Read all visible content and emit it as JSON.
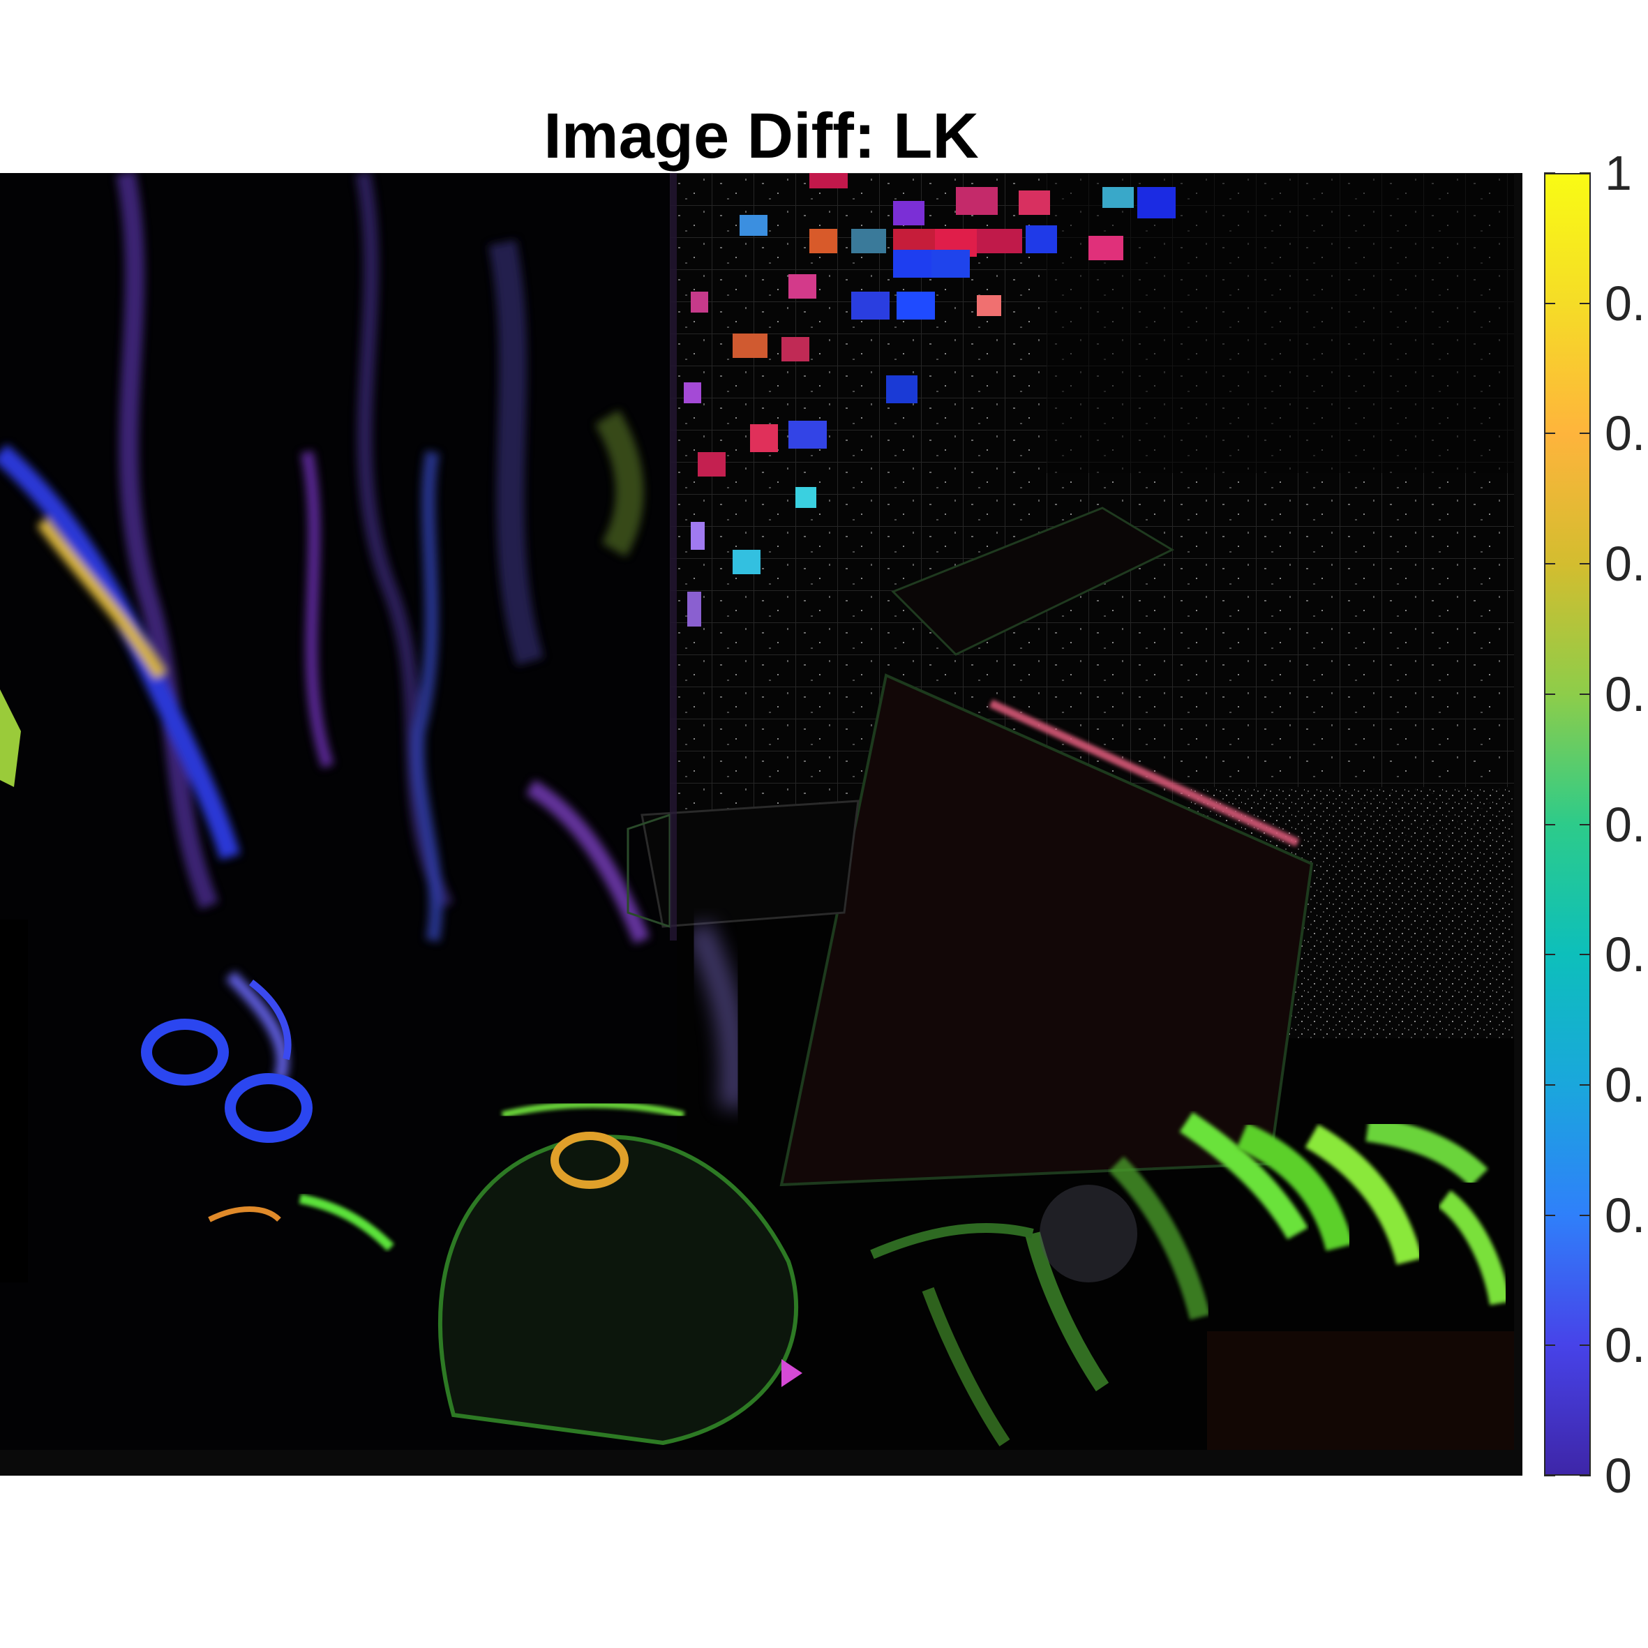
{
  "figure": {
    "title": "Image Diff: LK",
    "image_description_icon": "optical-flow-difference-image",
    "colormap": "parula",
    "colorbar": {
      "min": 0,
      "max": 1,
      "ticks": [
        {
          "value": 1,
          "label": "1"
        },
        {
          "value": 0.9,
          "label": "0."
        },
        {
          "value": 0.8,
          "label": "0."
        },
        {
          "value": 0.7,
          "label": "0."
        },
        {
          "value": 0.6,
          "label": "0."
        },
        {
          "value": 0.5,
          "label": "0."
        },
        {
          "value": 0.4,
          "label": "0."
        },
        {
          "value": 0.3,
          "label": "0."
        },
        {
          "value": 0.2,
          "label": "0."
        },
        {
          "value": 0.1,
          "label": "0."
        },
        {
          "value": 0,
          "label": "0"
        }
      ],
      "colors": [
        "#3e26a8",
        "#4743e9",
        "#2f80fa",
        "#1aa7dc",
        "#0dbfbb",
        "#2dcb8a",
        "#8dcd4a",
        "#d3bd2f",
        "#feb43c",
        "#f5dc27",
        "#f9fb14"
      ]
    }
  }
}
